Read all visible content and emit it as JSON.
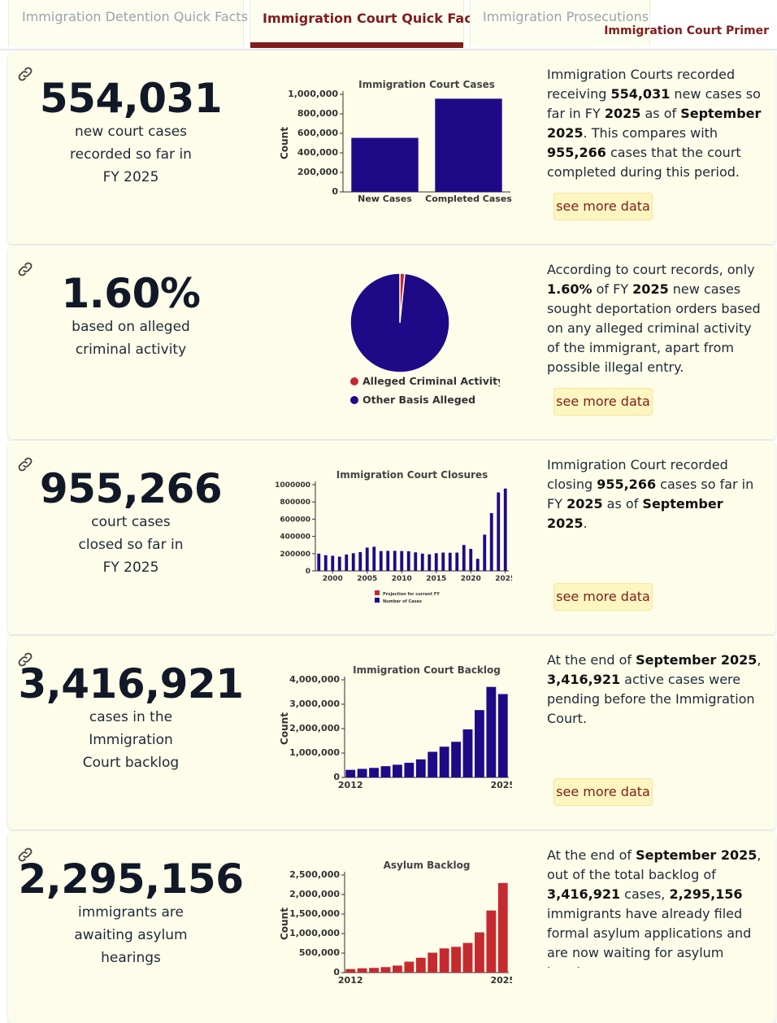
{
  "tabs": [
    {
      "label": "Immigration Detention Quick Facts",
      "active": false
    },
    {
      "label": "Immigration Court Quick Facts",
      "active": true
    },
    {
      "label": "Immigration Prosecutions",
      "active": false
    }
  ],
  "primer_link": "Immigration Court Primer",
  "see_more_label": "see more data",
  "cards": [
    {
      "big_number": "554,031",
      "caption": "new court cases recorded so far in FY 2025",
      "desc": [
        {
          "t": "Immigration Courts recorded receiving ",
          "b": false
        },
        {
          "t": "554,031",
          "b": true
        },
        {
          "t": " new cases so far in FY ",
          "b": false
        },
        {
          "t": "2025",
          "b": true
        },
        {
          "t": " as of ",
          "b": false
        },
        {
          "t": "September 2025",
          "b": true
        },
        {
          "t": ". This compares with ",
          "b": false
        },
        {
          "t": "955,266",
          "b": true
        },
        {
          "t": " cases that the court completed during this period.",
          "b": false
        }
      ]
    },
    {
      "big_number": "1.60%",
      "caption": "based on alleged criminal activity",
      "desc": [
        {
          "t": "According to court records, only ",
          "b": false
        },
        {
          "t": "1.60%",
          "b": true
        },
        {
          "t": " of FY ",
          "b": false
        },
        {
          "t": "2025",
          "b": true
        },
        {
          "t": " new cases sought deportation orders based on any alleged criminal activity of the immigrant, apart from possible illegal entry.",
          "b": false
        }
      ]
    },
    {
      "big_number": "955,266",
      "caption": "court cases closed so far in FY 2025",
      "desc": [
        {
          "t": "Immigration Court recorded closing ",
          "b": false
        },
        {
          "t": "955,266",
          "b": true
        },
        {
          "t": " cases so far in FY ",
          "b": false
        },
        {
          "t": "2025",
          "b": true
        },
        {
          "t": " as of ",
          "b": false
        },
        {
          "t": "September 2025",
          "b": true
        },
        {
          "t": ".",
          "b": false
        }
      ]
    },
    {
      "big_number": "3,416,921",
      "caption": "cases in the Immigration Court backlog",
      "desc": [
        {
          "t": "At the end of ",
          "b": false
        },
        {
          "t": "September 2025",
          "b": true
        },
        {
          "t": ", ",
          "b": false
        },
        {
          "t": "3,416,921",
          "b": true
        },
        {
          "t": " active cases were pending before the Immigration Court.",
          "b": false
        }
      ]
    },
    {
      "big_number": "2,295,156",
      "caption": "immigrants are awaiting asylum hearings",
      "desc": [
        {
          "t": "At the end of ",
          "b": false
        },
        {
          "t": "September 2025",
          "b": true
        },
        {
          "t": ", out of the total backlog of ",
          "b": false
        },
        {
          "t": "3,416,921",
          "b": true
        },
        {
          "t": " cases, ",
          "b": false
        },
        {
          "t": "2,295,156",
          "b": true
        },
        {
          "t": " immigrants have already filed formal asylum applications and are now waiting for asylum hearings or",
          "b": false
        }
      ]
    }
  ],
  "colors": {
    "navy": "#1e0a87",
    "red": "#c52a2f",
    "maroon": "#7f1d1d"
  },
  "chart_data": [
    {
      "type": "bar",
      "title": "Immigration Court Cases",
      "ylabel": "Count",
      "categories": [
        "New Cases",
        "Completed Cases"
      ],
      "values": [
        554031,
        955266
      ],
      "ylim": [
        0,
        1000000
      ],
      "yticks": [
        0,
        200000,
        400000,
        600000,
        800000,
        1000000
      ],
      "ytick_labels": [
        "0",
        "200,000",
        "400,000",
        "600,000",
        "800,000",
        "1,000,000"
      ]
    },
    {
      "type": "pie",
      "labels": [
        "Alleged Criminal Activity",
        "Other Basis Alleged"
      ],
      "values": [
        1.6,
        98.4
      ]
    },
    {
      "type": "bar",
      "title": "Immigration Court Closures",
      "x": [
        1998,
        1999,
        2000,
        2001,
        2002,
        2003,
        2004,
        2005,
        2006,
        2007,
        2008,
        2009,
        2010,
        2011,
        2012,
        2013,
        2014,
        2015,
        2016,
        2017,
        2018,
        2019,
        2020,
        2021,
        2022,
        2023,
        2024,
        2025
      ],
      "values": [
        200000,
        182000,
        175000,
        165000,
        190000,
        205000,
        218000,
        270000,
        280000,
        230000,
        232000,
        232000,
        230000,
        228000,
        215000,
        200000,
        192000,
        205000,
        212000,
        210000,
        212000,
        300000,
        255000,
        140000,
        420000,
        670000,
        910000,
        955000
      ],
      "ylim": [
        0,
        1000000
      ],
      "yticks": [
        0,
        200000,
        400000,
        600000,
        800000,
        1000000
      ],
      "ytick_labels": [
        "0",
        "200000",
        "400000",
        "600000",
        "800000",
        "1000000"
      ],
      "xtick_values": [
        2000,
        2005,
        2010,
        2015,
        2020,
        2025
      ],
      "legend": [
        "Projection for current FY",
        "Number of Cases"
      ]
    },
    {
      "type": "bar",
      "title": "Immigration Court Backlog",
      "ylabel": "Count",
      "x": [
        2012,
        2013,
        2014,
        2015,
        2016,
        2017,
        2018,
        2019,
        2020,
        2021,
        2022,
        2023,
        2024,
        2025
      ],
      "values": [
        310000,
        350000,
        390000,
        460000,
        520000,
        600000,
        740000,
        1050000,
        1260000,
        1460000,
        1970000,
        2760000,
        3710000,
        3416921
      ],
      "ylim": [
        0,
        4000000
      ],
      "yticks": [
        0,
        1000000,
        2000000,
        3000000,
        4000000
      ],
      "ytick_labels": [
        "0",
        "1,000,000",
        "2,000,000",
        "3,000,000",
        "4,000,000"
      ],
      "xtick_labels": [
        "2012",
        "2025"
      ]
    },
    {
      "type": "bar",
      "title": "Asylum Backlog",
      "ylabel": "Count",
      "x": [
        2012,
        2013,
        2014,
        2015,
        2016,
        2017,
        2018,
        2019,
        2020,
        2021,
        2022,
        2023,
        2024,
        2025
      ],
      "values": [
        90000,
        110000,
        120000,
        140000,
        180000,
        280000,
        380000,
        510000,
        620000,
        660000,
        760000,
        1030000,
        1590000,
        2295156
      ],
      "ylim": [
        0,
        2500000
      ],
      "yticks": [
        0,
        500000,
        1000000,
        1500000,
        2000000,
        2500000
      ],
      "ytick_labels": [
        "0",
        "500,000",
        "1,000,000",
        "1,500,000",
        "2,000,000",
        "2,500,000"
      ],
      "xtick_labels": [
        "2012",
        "2025"
      ]
    }
  ]
}
